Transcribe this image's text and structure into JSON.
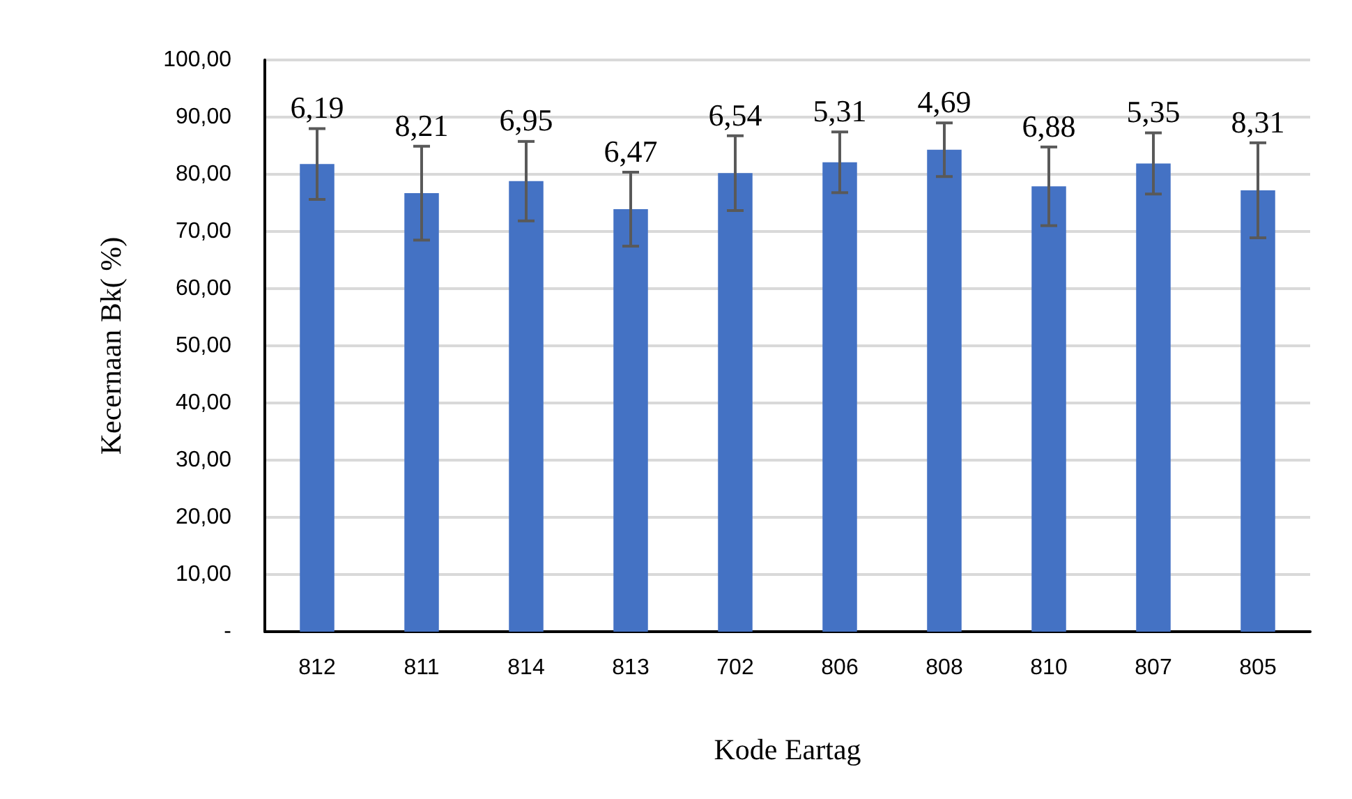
{
  "chart_data": {
    "type": "bar",
    "xlabel": "Kode Eartag",
    "ylabel": "Kecernaan Bk( %)",
    "categories": [
      "812",
      "811",
      "814",
      "813",
      "702",
      "806",
      "808",
      "810",
      "807",
      "805"
    ],
    "values": [
      81.8,
      76.7,
      78.8,
      73.9,
      80.2,
      82.1,
      84.3,
      77.9,
      81.9,
      77.2
    ],
    "errors": [
      6.19,
      8.21,
      6.95,
      6.47,
      6.54,
      5.31,
      4.69,
      6.88,
      5.35,
      8.31
    ],
    "annotations": [
      {
        "text": "6,19",
        "x": "812",
        "y": 88
      },
      {
        "text": "8,21",
        "x": "811",
        "y": 84.9
      },
      {
        "text": "6,95",
        "x": "814",
        "y": 85.8
      },
      {
        "text": "6,47",
        "x": "813",
        "y": 80.4
      },
      {
        "text": "6,54",
        "x": "702",
        "y": 86.7
      },
      {
        "text": "5,31",
        "x": "806",
        "y": 87.4
      },
      {
        "text": "4,69",
        "x": "808",
        "y": 89
      },
      {
        "text": "6,88",
        "x": "810",
        "y": 84.8
      },
      {
        "text": "5,35",
        "x": "807",
        "y": 87.3
      },
      {
        "text": "8,31",
        "x": "805",
        "y": 85.5
      }
    ],
    "color": "#4472c4",
    "ylim": [
      0,
      100
    ],
    "yticks": [
      {
        "value": 0,
        "label": "-"
      },
      {
        "value": 10,
        "label": "10,00"
      },
      {
        "value": 20,
        "label": "20,00"
      },
      {
        "value": 30,
        "label": "30,00"
      },
      {
        "value": 40,
        "label": "40,00"
      },
      {
        "value": 50,
        "label": "50,00"
      },
      {
        "value": 60,
        "label": "60,00"
      },
      {
        "value": 70,
        "label": "70,00"
      },
      {
        "value": 80,
        "label": "80,00"
      },
      {
        "value": 90,
        "label": "90,00"
      },
      {
        "value": 100,
        "label": "100,00"
      }
    ],
    "grid": "y"
  }
}
